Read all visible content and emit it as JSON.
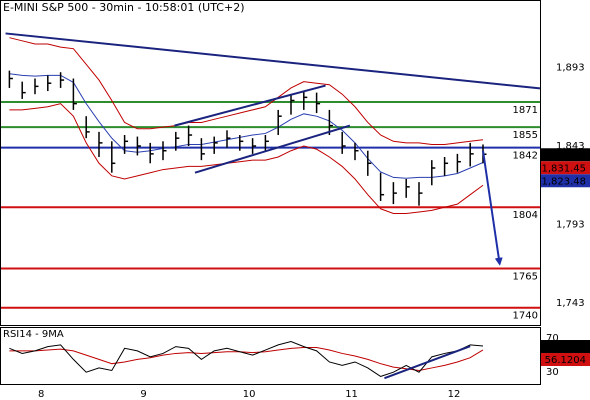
{
  "chart_data": {
    "type": "ohlc",
    "title": "E-MINI S&P 500 - 30min - 10:58:01 (UTC+2)",
    "categories": [
      null,
      null,
      "8",
      null,
      null,
      null,
      null,
      null,
      null,
      null,
      "9",
      null,
      null,
      null,
      null,
      null,
      null,
      null,
      "10",
      null,
      null,
      null,
      null,
      null,
      null,
      null,
      "11",
      null,
      null,
      null,
      null,
      null,
      null,
      null,
      "12",
      null,
      null,
      null
    ],
    "high": [
      1891,
      1884,
      1886,
      1888,
      1890,
      1886,
      1862,
      1852,
      1846,
      1850,
      1849,
      1845,
      1846,
      1852,
      1856,
      1848,
      1849,
      1853,
      1850,
      1848,
      1850,
      1866,
      1876,
      1878,
      1877,
      1866,
      1852,
      1845,
      1840,
      1826,
      1820,
      1822,
      1820,
      1834,
      1836,
      1838,
      1845,
      1844
    ],
    "low": [
      1880,
      1873,
      1876,
      1878,
      1880,
      1866,
      1848,
      1836,
      1826,
      1838,
      1837,
      1832,
      1834,
      1840,
      1843,
      1834,
      1838,
      1842,
      1840,
      1838,
      1840,
      1850,
      1863,
      1866,
      1864,
      1850,
      1838,
      1834,
      1824,
      1808,
      1806,
      1810,
      1805,
      1818,
      1824,
      1826,
      1830,
      1832
    ],
    "close": [
      1886,
      1877,
      1881,
      1883,
      1885,
      1870,
      1852,
      1845,
      1832,
      1846,
      1843,
      1838,
      1840,
      1848,
      1850,
      1838,
      1845,
      1848,
      1846,
      1843,
      1846,
      1862,
      1872,
      1874,
      1870,
      1856,
      1843,
      1840,
      1832,
      1812,
      1813,
      1817,
      1813,
      1829,
      1832,
      1833,
      1838,
      1837.75
    ],
    "bar_color": "#000000",
    "upper_band": [
      1912,
      1910,
      1908,
      1908,
      1906,
      1905,
      1895,
      1885,
      1872,
      1858,
      1854,
      1854,
      1855,
      1856,
      1858,
      1858,
      1860,
      1862,
      1864,
      1866,
      1868,
      1874,
      1880,
      1884,
      1883,
      1882,
      1876,
      1868,
      1858,
      1850,
      1846,
      1845,
      1845,
      1844,
      1844,
      1845,
      1846,
      1847
    ],
    "lower_band": [
      1866,
      1866,
      1867,
      1868,
      1870,
      1862,
      1845,
      1832,
      1824,
      1822,
      1824,
      1826,
      1828,
      1829,
      1830,
      1830,
      1831,
      1832,
      1833,
      1834,
      1834,
      1836,
      1840,
      1843,
      1841,
      1836,
      1830,
      1822,
      1812,
      1803,
      1800,
      1800,
      1801,
      1802,
      1804,
      1806,
      1812,
      1818
    ],
    "band_color": "#c00000",
    "ma": [
      1889,
      1888,
      1887.5,
      1888,
      1888,
      1883.5,
      1870,
      1858.5,
      1848,
      1840,
      1839,
      1840,
      1841.5,
      1842.5,
      1844,
      1844,
      1845.5,
      1847,
      1848.5,
      1850,
      1851,
      1855,
      1860,
      1863.5,
      1862,
      1859,
      1853,
      1845,
      1835,
      1826.5,
      1823,
      1822.5,
      1823,
      1823,
      1824,
      1825.5,
      1829,
      1832.5
    ],
    "ma_color": "#2a3fb0",
    "levels": [
      {
        "value": 1871,
        "color": "#2e8b2e"
      },
      {
        "value": 1855,
        "color": "#2e8b2e"
      },
      {
        "value": 1842,
        "color": "#1f2fa8"
      },
      {
        "value": 1804,
        "color": "#d01010"
      },
      {
        "value": 1765,
        "color": "#d01010"
      },
      {
        "value": 1740,
        "color": "#d01010"
      }
    ],
    "trendlines": [
      {
        "x": [
          -0.3,
          41.45
        ],
        "y": [
          1914.7,
          1879.7
        ],
        "color": "#1a237e",
        "arrow": false
      },
      {
        "x": [
          12.9,
          24.7
        ],
        "y": [
          1856,
          1881.5
        ],
        "color": "#1a237e",
        "arrow": false
      },
      {
        "x": [
          14.5,
          26.6
        ],
        "y": [
          1826,
          1856
        ],
        "color": "#1a237e",
        "arrow": false
      },
      {
        "x": [
          37,
          38.3
        ],
        "y": [
          1840,
          1768
        ],
        "color": "#1f2fa8",
        "arrow": true
      }
    ],
    "last_prices": [
      {
        "value": 1837.75,
        "label": "1,837.75",
        "color": "#000000"
      },
      {
        "value": 1831.45,
        "label": "1,831.45",
        "color": "#d01010"
      },
      {
        "value": 1823.48,
        "label": "1,823.48",
        "color": "#1f2fa8"
      }
    ],
    "ylim": [
      1729,
      1936
    ],
    "yticks": [
      {
        "value": 1893,
        "label": "1,893"
      },
      {
        "value": 1843,
        "label": "1,843"
      },
      {
        "value": 1793,
        "label": "1,793"
      },
      {
        "value": 1743,
        "label": "1,743"
      }
    ],
    "grid": true,
    "rsi": {
      "title": "RSI14 - 9MA",
      "values": [
        58,
        52,
        55,
        60,
        62,
        45,
        30,
        35,
        32,
        58,
        55,
        48,
        52,
        60,
        58,
        45,
        55,
        58,
        54,
        50,
        56,
        62,
        66,
        60,
        55,
        42,
        38,
        42,
        35,
        25,
        30,
        38,
        30,
        48,
        52,
        55,
        62,
        60.7108
      ],
      "color": "#000000",
      "ma": [
        55,
        55,
        55,
        56,
        57,
        55,
        50,
        45,
        40,
        42,
        45,
        47,
        50,
        52,
        53,
        52,
        53,
        54,
        54,
        53,
        54,
        56,
        58,
        59,
        59,
        56,
        52,
        49,
        45,
        40,
        36,
        34,
        32,
        35,
        38,
        42,
        47,
        56.1204
      ],
      "ma_color": "#c00000",
      "ylim": [
        15,
        83
      ],
      "yticks": [
        70,
        30
      ],
      "trendlines": [
        {
          "x": [
            29.3,
            36
          ],
          "y": [
            23,
            60.5
          ],
          "color": "#1a237e"
        }
      ],
      "last": [
        {
          "value": 60.7108,
          "color": "#000000"
        },
        {
          "value": 56.1204,
          "color": "#d01010"
        }
      ]
    }
  }
}
